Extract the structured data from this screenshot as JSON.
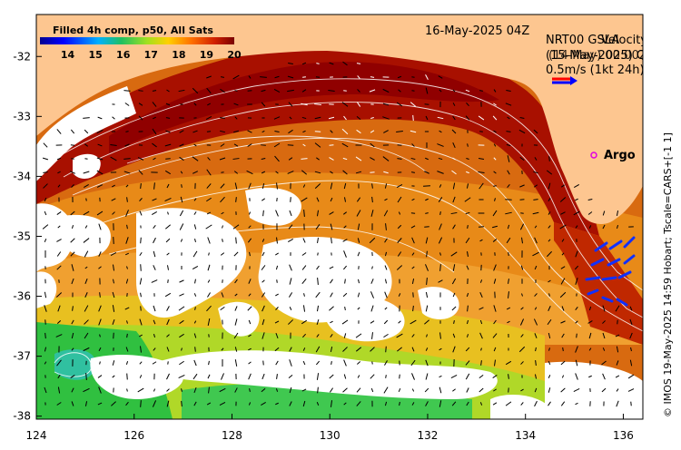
{
  "title": {
    "product": "Filled 4h comp, p50, All Sats",
    "date": "16-May-2025 04Z",
    "velocity_line1": "NRT00 GSLA",
    "velocity_line1b": "Velocity",
    "velocity_line2": "(15-May-2025) QC",
    "velocity_line2b": "(14-May) 00:00Z",
    "scale_label": "0.5m/s (1kt 24h)"
  },
  "credit": "© IMOS 19-May-2025 14:59 Hobart; Tscale=CARS+[-1 1]",
  "argo_label": "Argo",
  "colorbar": {
    "min": 13,
    "max": 20,
    "ticks": [
      "14",
      "15",
      "16",
      "17",
      "18",
      "19",
      "20"
    ]
  },
  "axes": {
    "lon_ticks": [
      "124",
      "126",
      "128",
      "130",
      "132",
      "134",
      "136"
    ],
    "lat_ticks": [
      "-32",
      "-33",
      "-34",
      "-35",
      "-36",
      "-37",
      "-38"
    ],
    "lon_min": 124,
    "lon_max": 136.4,
    "lat_min": -38.05,
    "lat_max": -31.3
  },
  "colors": {
    "land": "#fdc690",
    "cloud": "#ffffff",
    "argo": "#e000e0",
    "scale_arrow_red": "#ff0000",
    "scale_arrow_blue": "#0000ff"
  }
}
